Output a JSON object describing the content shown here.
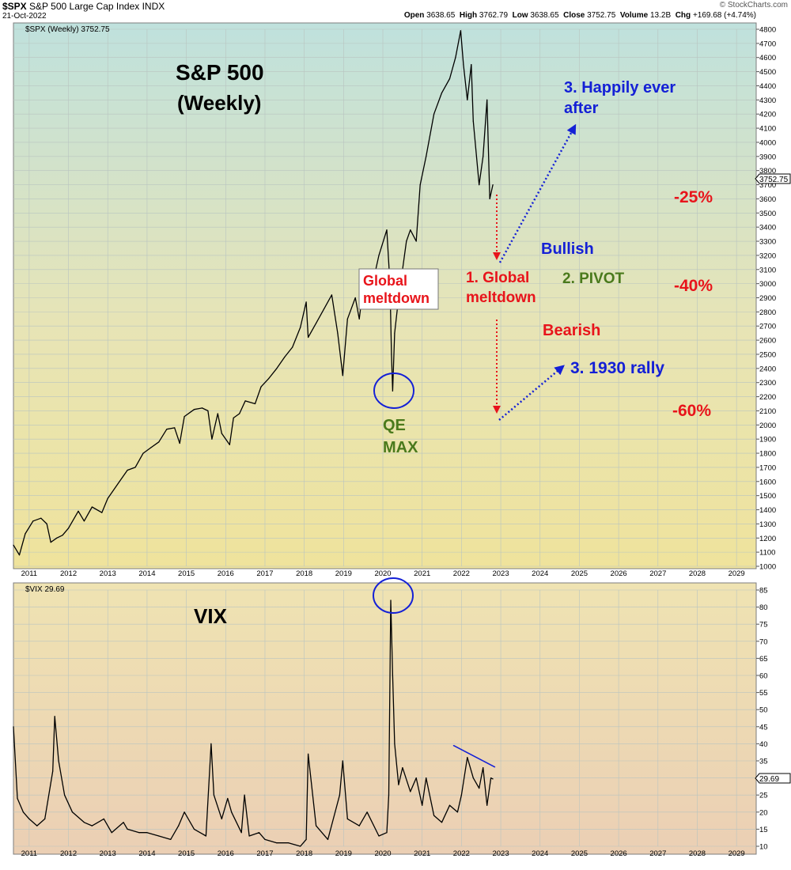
{
  "header": {
    "symbol": "$SPX",
    "name": "S&P 500 Large Cap Index",
    "exchange": "INDX",
    "date": "21-Oct-2022",
    "brand": "© StockCharts.com",
    "open_label": "Open",
    "open": "3638.65",
    "high_label": "High",
    "high": "3762.79",
    "low_label": "Low",
    "low": "3638.65",
    "close_label": "Close",
    "close": "3752.75",
    "volume_label": "Volume",
    "volume": "13.2B",
    "chg_label": "Chg",
    "chg": "+169.68 (+4.74%)"
  },
  "colors": {
    "price_line": "#000000",
    "annotation_red": "#e8141b",
    "annotation_blue": "#1420d6",
    "annotation_green": "#4a7a1c",
    "grid": "#b9c4c0"
  },
  "chart_data": [
    {
      "type": "line",
      "legend": "$SPX (Weekly) 3752.75",
      "last_value_tag": "3752.75",
      "title": "S&P 500",
      "subtitle": "(Weekly)",
      "x_ticks": [
        "2011",
        "2012",
        "2013",
        "2014",
        "2015",
        "2016",
        "2017",
        "2018",
        "2019",
        "2020",
        "2021",
        "2022",
        "2023",
        "2024",
        "2025",
        "2026",
        "2027",
        "2028",
        "2029"
      ],
      "ylim": [
        1000,
        4800
      ],
      "y_ticks": [
        1000,
        1100,
        1200,
        1300,
        1400,
        1500,
        1600,
        1700,
        1800,
        1900,
        2000,
        2100,
        2200,
        2300,
        2400,
        2500,
        2600,
        2700,
        2800,
        2900,
        3000,
        3100,
        3200,
        3300,
        3400,
        3500,
        3600,
        3700,
        3800,
        3900,
        4000,
        4100,
        4200,
        4300,
        4400,
        4500,
        4600,
        4700,
        4800
      ],
      "xlim": [
        2010.6,
        2029.5
      ],
      "grid": true,
      "series": [
        {
          "x": [
            2010.6,
            2010.75,
            2010.9,
            2011.1,
            2011.3,
            2011.45,
            2011.55,
            2011.7,
            2011.85,
            2012.0,
            2012.25,
            2012.4,
            2012.6,
            2012.85,
            2013.0,
            2013.3,
            2013.5,
            2013.7,
            2013.9,
            2014.1,
            2014.3,
            2014.5,
            2014.7,
            2014.83,
            2014.95,
            2015.2,
            2015.4,
            2015.55,
            2015.65,
            2015.8,
            2015.9,
            2016.1,
            2016.2,
            2016.35,
            2016.5,
            2016.75,
            2016.9,
            2017.1,
            2017.3,
            2017.5,
            2017.7,
            2017.9,
            2018.05,
            2018.1,
            2018.3,
            2018.5,
            2018.7,
            2018.85,
            2018.98,
            2019.1,
            2019.3,
            2019.4,
            2019.5,
            2019.7,
            2019.9,
            2020.1,
            2020.18,
            2020.22,
            2020.25,
            2020.3,
            2020.4,
            2020.5,
            2020.6,
            2020.7,
            2020.85,
            2020.95,
            2021.1,
            2021.3,
            2021.5,
            2021.7,
            2021.85,
            2021.98,
            2022.05,
            2022.15,
            2022.25,
            2022.3,
            2022.45,
            2022.55,
            2022.65,
            2022.72,
            2022.8
          ],
          "values": [
            1150,
            1080,
            1230,
            1320,
            1340,
            1300,
            1170,
            1200,
            1220,
            1270,
            1390,
            1320,
            1420,
            1380,
            1480,
            1600,
            1680,
            1700,
            1800,
            1840,
            1880,
            1970,
            1980,
            1870,
            2060,
            2110,
            2120,
            2100,
            1900,
            2080,
            1940,
            1860,
            2050,
            2080,
            2170,
            2150,
            2270,
            2330,
            2400,
            2480,
            2550,
            2690,
            2870,
            2620,
            2720,
            2820,
            2920,
            2650,
            2350,
            2750,
            2900,
            2750,
            2980,
            2950,
            3200,
            3380,
            3000,
            2500,
            2240,
            2650,
            2900,
            3100,
            3300,
            3380,
            3300,
            3700,
            3900,
            4200,
            4350,
            4450,
            4600,
            4790,
            4550,
            4300,
            4550,
            4150,
            3700,
            3900,
            4300,
            3600,
            3700
          ]
        }
      ],
      "annotations": [
        "Global meltdown",
        "QE",
        "MAX",
        "1. Global meltdown",
        "Bullish",
        "2. PIVOT",
        "Bearish",
        "3. Happily ever after",
        "3. 1930 rally",
        "-25%",
        "-40%",
        "-60%"
      ]
    },
    {
      "type": "line",
      "legend": "$VIX 29.69",
      "last_value_tag": "29.69",
      "title": "VIX",
      "x_ticks": [
        "2011",
        "2012",
        "2013",
        "2014",
        "2015",
        "2016",
        "2017",
        "2018",
        "2019",
        "2020",
        "2021",
        "2022",
        "2023",
        "2024",
        "2025",
        "2026",
        "2027",
        "2028",
        "2029"
      ],
      "ylim": [
        10,
        85
      ],
      "y_ticks": [
        10,
        15,
        20,
        25,
        30,
        35,
        40,
        45,
        50,
        55,
        60,
        65,
        70,
        75,
        80,
        85
      ],
      "xlim": [
        2010.6,
        2029.5
      ],
      "grid": true,
      "series": [
        {
          "x": [
            2010.6,
            2010.7,
            2010.85,
            2011.0,
            2011.2,
            2011.4,
            2011.6,
            2011.65,
            2011.75,
            2011.9,
            2012.1,
            2012.4,
            2012.6,
            2012.9,
            2013.1,
            2013.4,
            2013.5,
            2013.8,
            2014.0,
            2014.3,
            2014.6,
            2014.8,
            2014.95,
            2015.2,
            2015.5,
            2015.63,
            2015.7,
            2015.9,
            2016.05,
            2016.15,
            2016.4,
            2016.48,
            2016.6,
            2016.85,
            2017.0,
            2017.3,
            2017.6,
            2017.9,
            2018.05,
            2018.1,
            2018.3,
            2018.6,
            2018.9,
            2018.98,
            2019.1,
            2019.4,
            2019.6,
            2019.9,
            2020.1,
            2020.15,
            2020.2,
            2020.25,
            2020.3,
            2020.4,
            2020.5,
            2020.7,
            2020.85,
            2021.0,
            2021.1,
            2021.3,
            2021.5,
            2021.7,
            2021.9,
            2022.0,
            2022.15,
            2022.3,
            2022.45,
            2022.55,
            2022.65,
            2022.75,
            2022.8
          ],
          "values": [
            45,
            24,
            20,
            18,
            16,
            18,
            32,
            48,
            35,
            25,
            20,
            17,
            16,
            18,
            14,
            17,
            15,
            14,
            14,
            13,
            12,
            16,
            20,
            15,
            13,
            40,
            25,
            18,
            24,
            20,
            14,
            25,
            13,
            14,
            12,
            11,
            11,
            10,
            12,
            37,
            16,
            12,
            25,
            35,
            18,
            16,
            20,
            13,
            14,
            25,
            82,
            60,
            40,
            28,
            33,
            26,
            30,
            22,
            30,
            19,
            17,
            22,
            20,
            25,
            36,
            30,
            27,
            33,
            22,
            30,
            29.7
          ]
        },
        {
          "x": [
            2021.8,
            2022.85
          ],
          "values": [
            39.5,
            33.2
          ]
        }
      ]
    }
  ]
}
